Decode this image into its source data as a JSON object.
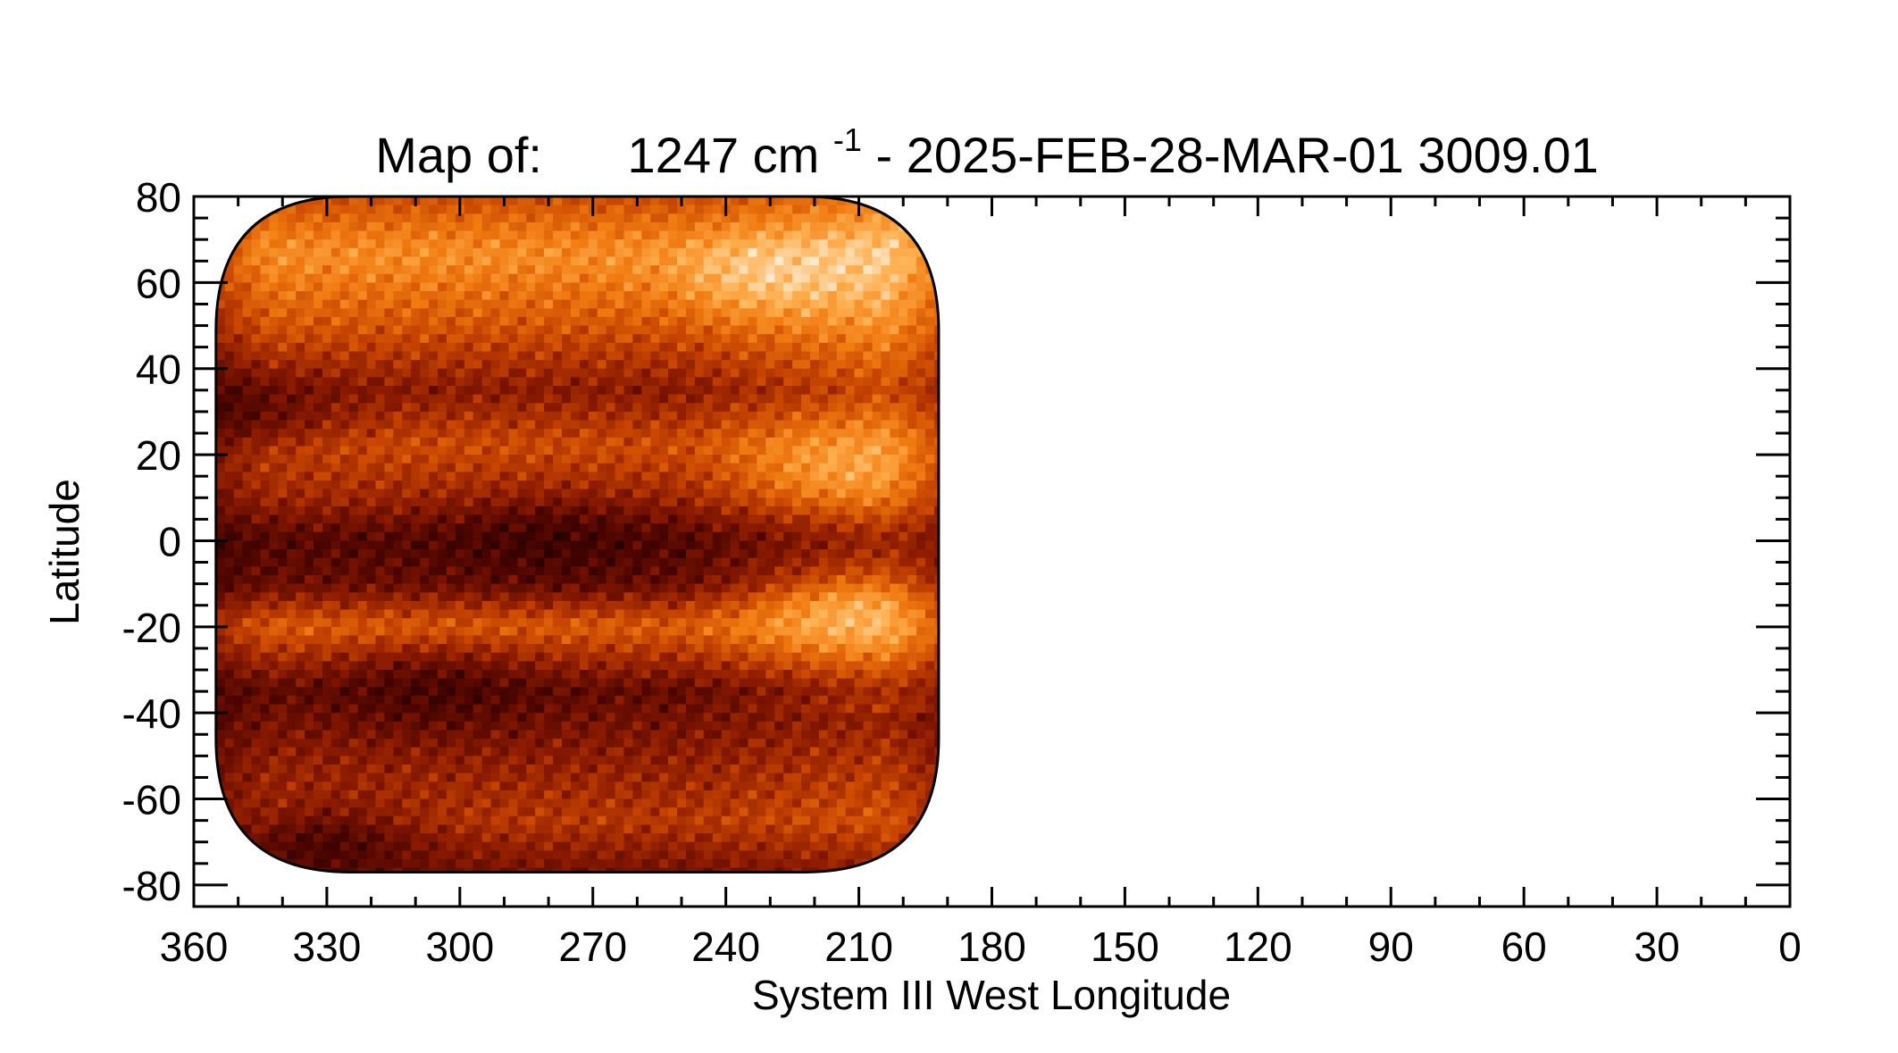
{
  "chart_data": {
    "type": "heatmap",
    "title": {
      "prefix": "Map of:",
      "wavenumber": "1247 cm",
      "exponent": "-1",
      "suffix": " - 2025-FEB-28-MAR-01 3009.01"
    },
    "xlabel": "System III West Longitude",
    "ylabel": "Latitude",
    "xlim": [
      360,
      0
    ],
    "ylim": [
      -85,
      80
    ],
    "x_ticks": [
      "360",
      "330",
      "300",
      "270",
      "240",
      "210",
      "180",
      "150",
      "120",
      "90",
      "60",
      "30",
      "0"
    ],
    "y_ticks": [
      "80",
      "60",
      "40",
      "20",
      "0",
      "-20",
      "-40",
      "-60",
      "-80"
    ],
    "coverage": {
      "longitude_range": [
        192,
        355
      ],
      "latitude_range": [
        -77,
        80
      ],
      "shape": "rounded rectangle (limb of observed disk)"
    },
    "colormap": {
      "name": "red-temperature",
      "stops": [
        "#1a0000",
        "#4d0500",
        "#8a1a00",
        "#c84500",
        "#f07a10",
        "#ffb050",
        "#ffe8cc"
      ]
    },
    "bands": [
      {
        "lat": 65,
        "level": 0.72
      },
      {
        "lat": 50,
        "level": 0.55
      },
      {
        "lat": 35,
        "level": 0.33
      },
      {
        "lat": 22,
        "level": 0.52
      },
      {
        "lat": 10,
        "level": 0.38
      },
      {
        "lat": 0,
        "level": 0.18
      },
      {
        "lat": -10,
        "level": 0.24
      },
      {
        "lat": -20,
        "level": 0.58
      },
      {
        "lat": -35,
        "level": 0.22
      },
      {
        "lat": -50,
        "level": 0.34
      },
      {
        "lat": -65,
        "level": 0.45
      },
      {
        "lat": -77,
        "level": 0.38
      }
    ],
    "features": [
      {
        "type": "bright",
        "lon": 228,
        "lat": 62,
        "level": 0.97
      },
      {
        "type": "bright",
        "lon": 212,
        "lat": 17,
        "level": 0.85
      },
      {
        "type": "bright",
        "lon": 210,
        "lat": -17,
        "level": 0.9
      },
      {
        "type": "dark",
        "lon": 280,
        "lat": 0,
        "level": 0.1
      },
      {
        "type": "dark",
        "lon": 305,
        "lat": -35,
        "level": 0.12
      },
      {
        "type": "dark",
        "lon": 330,
        "lat": -70,
        "level": 0.1
      },
      {
        "type": "dark",
        "lon": 350,
        "lat": 30,
        "level": 0.15
      }
    ]
  }
}
